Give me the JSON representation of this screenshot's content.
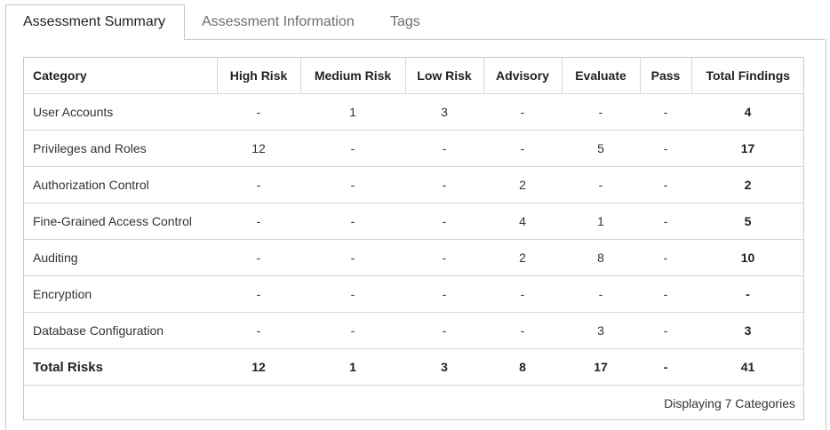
{
  "tabs": [
    {
      "label": "Assessment Summary"
    },
    {
      "label": "Assessment Information"
    },
    {
      "label": "Tags"
    }
  ],
  "table": {
    "headers": [
      "Category",
      "High Risk",
      "Medium Risk",
      "Low Risk",
      "Advisory",
      "Evaluate",
      "Pass",
      "Total Findings"
    ],
    "rows": [
      [
        "User Accounts",
        "-",
        "1",
        "3",
        "-",
        "-",
        "-",
        "4"
      ],
      [
        "Privileges and Roles",
        "12",
        "-",
        "-",
        "-",
        "5",
        "-",
        "17"
      ],
      [
        "Authorization Control",
        "-",
        "-",
        "-",
        "2",
        "-",
        "-",
        "2"
      ],
      [
        "Fine-Grained Access Control",
        "-",
        "-",
        "-",
        "4",
        "1",
        "-",
        "5"
      ],
      [
        "Auditing",
        "-",
        "-",
        "-",
        "2",
        "8",
        "-",
        "10"
      ],
      [
        "Encryption",
        "-",
        "-",
        "-",
        "-",
        "-",
        "-",
        "-"
      ],
      [
        "Database Configuration",
        "-",
        "-",
        "-",
        "-",
        "3",
        "-",
        "3"
      ]
    ],
    "totals": [
      "Total Risks",
      "12",
      "1",
      "3",
      "8",
      "17",
      "-",
      "41"
    ]
  },
  "footer": {
    "text": "Displaying 7 Categories"
  }
}
